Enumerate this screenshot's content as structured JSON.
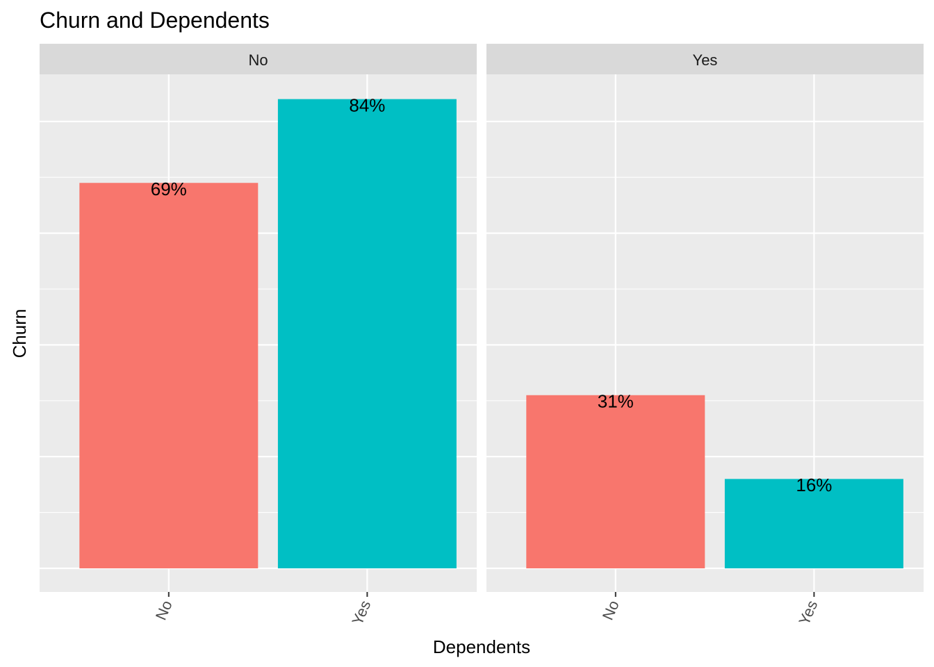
{
  "chart_data": {
    "type": "bar",
    "title": "Churn and Dependents",
    "xlabel": "Dependents",
    "ylabel": "Churn",
    "ylim": [
      0,
      0.88
    ],
    "grid": true,
    "legend": "none",
    "colors": {
      "No": "#F8766D",
      "Yes": "#00BFC4"
    },
    "panel_strip_color": "#D9D9D9",
    "panel_background_color": "#EBEBEB",
    "panels": [
      {
        "strip": "No",
        "categories": [
          "No",
          "Yes"
        ],
        "values": [
          0.69,
          0.84
        ],
        "labels": [
          "69%",
          "84%"
        ]
      },
      {
        "strip": "Yes",
        "categories": [
          "No",
          "Yes"
        ],
        "values": [
          0.31,
          0.16
        ],
        "labels": [
          "31%",
          "16%"
        ]
      }
    ]
  }
}
